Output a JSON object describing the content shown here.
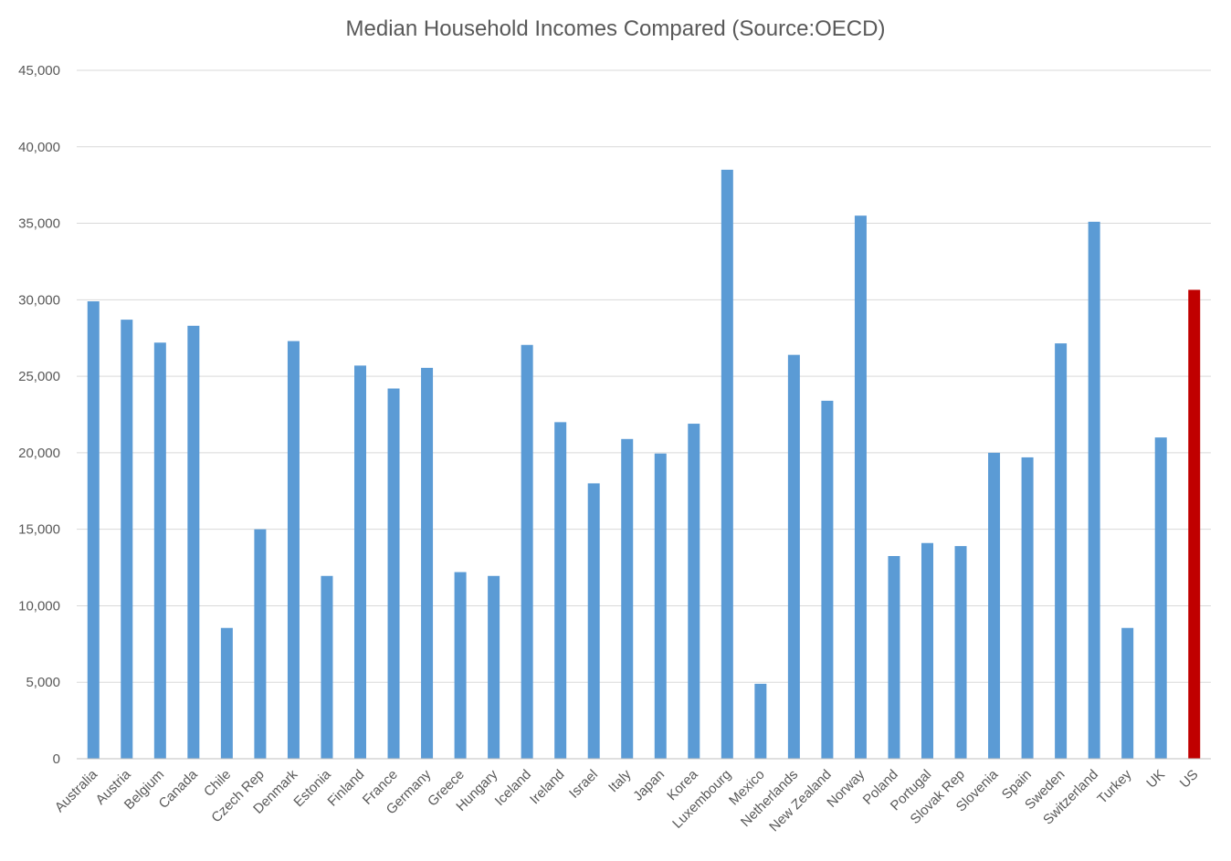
{
  "chart_data": {
    "type": "bar",
    "title": "Median Household Incomes Compared (Source:OECD)",
    "xlabel": "",
    "ylabel": "",
    "ylim": [
      0,
      45000
    ],
    "yticks": [
      0,
      5000,
      10000,
      15000,
      20000,
      25000,
      30000,
      35000,
      40000,
      45000
    ],
    "ytick_labels": [
      "0",
      "5,000",
      "10,000",
      "15,000",
      "20,000",
      "25,000",
      "30,000",
      "35,000",
      "40,000",
      "45,000"
    ],
    "grid": true,
    "legend": "none",
    "categories": [
      "Australia",
      "Austria",
      "Belgium",
      "Canada",
      "Chile",
      "Czech Rep",
      "Denmark",
      "Estonia",
      "Finland",
      "France",
      "Germany",
      "Greece",
      "Hungary",
      "Iceland",
      "Ireland",
      "Israel",
      "Italy",
      "Japan",
      "Korea",
      "Luxembourg",
      "Mexico",
      "Netherlands",
      "New Zealand",
      "Norway",
      "Poland",
      "Portugal",
      "Slovak Rep",
      "Slovenia",
      "Spain",
      "Sweden",
      "Switzerland",
      "Turkey",
      "UK",
      "US"
    ],
    "values": [
      29900,
      28700,
      27200,
      28300,
      8550,
      15000,
      27300,
      11950,
      25700,
      24200,
      25550,
      12200,
      11950,
      27050,
      22000,
      18000,
      20900,
      19950,
      21900,
      38500,
      4900,
      26400,
      23400,
      35500,
      13250,
      14100,
      13900,
      20000,
      19700,
      27150,
      35100,
      8550,
      21000,
      30650
    ],
    "colors": {
      "bar": "#5B9BD5",
      "highlight": "#C00000",
      "highlight_category": "US",
      "grid": "#D9D9D9",
      "text": "#595959"
    }
  }
}
